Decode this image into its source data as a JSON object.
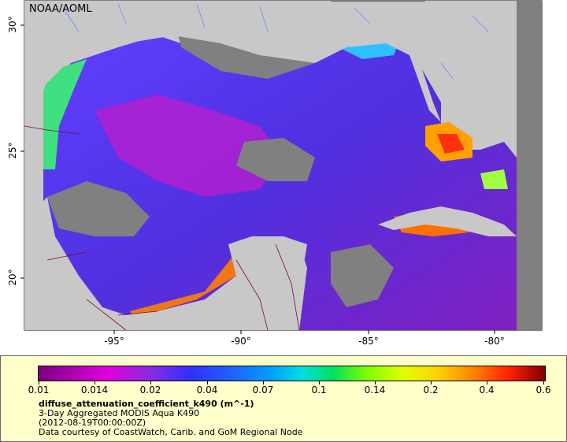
{
  "map": {
    "credit": "NOAA/AOML",
    "x_ticks": [
      "-95°",
      "-90°",
      "-85°",
      "-80°"
    ],
    "y_ticks": [
      "30°",
      "25°",
      "20°"
    ]
  },
  "legend": {
    "tick_labels": [
      "0.01",
      "0.014",
      "0.02",
      "0.04",
      "0.07",
      "0.1",
      "0.14",
      "0.2",
      "0.4",
      "0.6"
    ],
    "variable": "diffuse_attenuation_coefficient_k490 (m^-1)",
    "description": "3-Day Aggregated MODIS Aqua K490",
    "date": "(2012-08-19T00:00:00Z)",
    "courtesy": "Data courtesy of CoastWatch, Carib. and GoM Regional Node"
  },
  "colors": {
    "land": "#c8c8c8",
    "nodata": "#808080",
    "legend_bg": "#ffffcc"
  }
}
